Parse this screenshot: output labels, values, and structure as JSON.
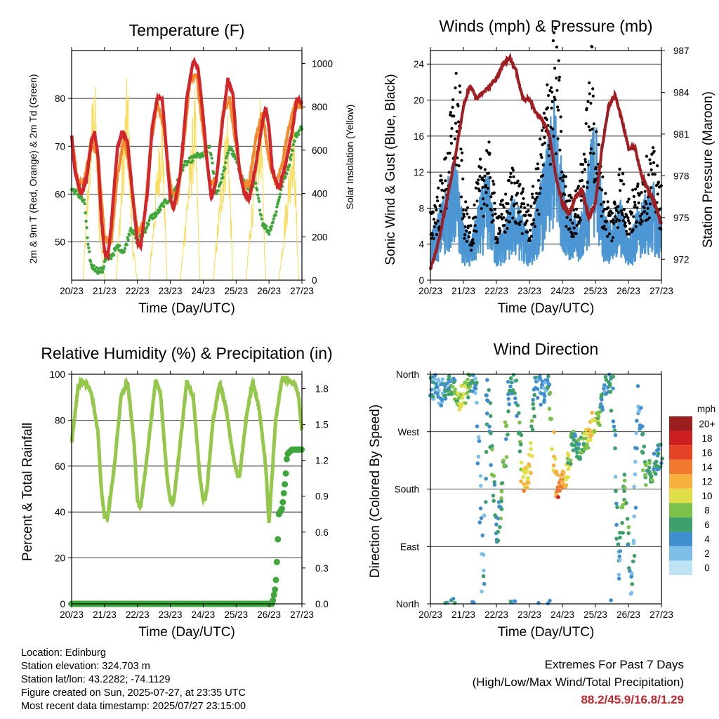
{
  "x_ticks": [
    "20/23",
    "21/23",
    "22/23",
    "23/23",
    "24/23",
    "25/23",
    "26/23",
    "27/23"
  ],
  "x_axis_title": "Time (Day/UTC)",
  "panels": {
    "temperature": {
      "title": "Temperature (F)",
      "left_axis_label": "2m & 9m T (Red, Orange) & 2m Td (Green)",
      "right_axis_label": "Solar Insolation (Yellow)",
      "left_ticks": [
        50,
        60,
        70,
        80
      ],
      "right_ticks": [
        0,
        200,
        400,
        600,
        800,
        1000
      ]
    },
    "winds": {
      "title": "Winds (mph) & Pressure (mb)",
      "left_axis_label": "Sonic Wind & Gust (Blue, Black)",
      "right_axis_label": "Station Pressure (Maroon)",
      "left_ticks": [
        0,
        4,
        8,
        12,
        16,
        20,
        24
      ],
      "right_ticks": [
        972,
        975,
        978,
        981,
        984,
        987
      ]
    },
    "humidity": {
      "title": "Relative Humidity (%) & Precipitation (in)",
      "left_axis_label": "Percent & Total Rainfall",
      "left_ticks": [
        0,
        20,
        40,
        60,
        80,
        100
      ],
      "right_ticks": [
        "0.0",
        "0.3",
        "0.6",
        "0.9",
        "1.2",
        "1.5",
        "1.8"
      ]
    },
    "direction": {
      "title": "Wind Direction",
      "left_axis_label": "Direction (Colored By Speed)",
      "dir_ticks": [
        "North",
        "East",
        "South",
        "West",
        "North"
      ],
      "colorbar_title": "mph",
      "colorbar_labels": [
        "0",
        "2",
        "4",
        "6",
        "8",
        "10",
        "12",
        "14",
        "16",
        "18",
        "20+"
      ],
      "colorbar_colors": [
        "#bde3f5",
        "#7fbfe7",
        "#3f8fcf",
        "#3da06a",
        "#7cc14a",
        "#e0df4a",
        "#f7b13f",
        "#f17a2f",
        "#e44326",
        "#cc1f1f",
        "#9b1d1d"
      ]
    }
  },
  "info": {
    "location": "Location: Edinburg",
    "elevation": "Station elevation: 324.703 m",
    "latlon": "Station lat/lon: 43.2282; -74.1129",
    "created": "Figure created on Sun, 2025-07-27, at 23:35 UTC",
    "recent": "Most recent data timestamp: 2025/07/27 23:15:00"
  },
  "extremes": {
    "title": "Extremes For Past 7 Days",
    "subtitle": "(High/Low/Max Wind/Total Precipitation)",
    "values": "88.2/45.9/16.8/1.29"
  },
  "chart_data": [
    {
      "type": "line",
      "title": "Temperature (F)",
      "xlabel": "Time (Day/UTC)",
      "ylabel": "2m & 9m T (Red, Orange) & 2m Td (Green)",
      "y2label": "Solar Insolation (Yellow)",
      "ylim": [
        42,
        90
      ],
      "y2lim": [
        0,
        1060
      ],
      "x_days": [
        0,
        7
      ],
      "series": [
        {
          "name": "2m T",
          "color": "#d3262a",
          "x": [
            0,
            0.1,
            0.2,
            0.3,
            0.45,
            0.6,
            0.7,
            0.8,
            0.9,
            1.0,
            1.1,
            1.2,
            1.3,
            1.4,
            1.55,
            1.7,
            1.85,
            2.0,
            2.1,
            2.3,
            2.45,
            2.6,
            2.75,
            2.85,
            3.0,
            3.1,
            3.3,
            3.5,
            3.7,
            3.85,
            4.0,
            4.1,
            4.25,
            4.4,
            4.6,
            4.75,
            4.9,
            5.0,
            5.1,
            5.25,
            5.4,
            5.6,
            5.8,
            5.9,
            6.0,
            6.1,
            6.3,
            6.5,
            6.7,
            6.85,
            7.0
          ],
          "y": [
            72,
            65,
            62,
            60,
            63,
            71,
            73,
            68,
            55,
            48,
            47,
            53,
            62,
            70,
            73,
            71,
            60,
            50,
            49,
            60,
            74,
            80,
            80,
            72,
            59,
            57,
            64,
            80,
            88,
            86,
            76,
            68,
            59,
            63,
            76,
            84,
            81,
            72,
            65,
            60,
            59,
            66,
            75,
            78,
            74,
            65,
            61,
            66,
            73,
            80,
            79
          ]
        },
        {
          "name": "9m T",
          "color": "#f28b2c",
          "x": [
            0,
            0.2,
            0.4,
            0.6,
            0.8,
            1.0,
            1.2,
            1.4,
            1.6,
            1.8,
            2.0,
            2.2,
            2.4,
            2.6,
            2.8,
            3.0,
            3.2,
            3.4,
            3.6,
            3.8,
            4.0,
            4.2,
            4.4,
            4.6,
            4.8,
            5.0,
            5.2,
            5.4,
            5.6,
            5.8,
            6.0,
            6.2,
            6.4,
            6.6,
            6.8,
            7.0
          ],
          "y": [
            72,
            62,
            63,
            71,
            68,
            51,
            50,
            64,
            72,
            63,
            52,
            54,
            70,
            79,
            74,
            62,
            58,
            70,
            84,
            85,
            73,
            62,
            63,
            77,
            80,
            70,
            62,
            62,
            72,
            77,
            67,
            62,
            66,
            74,
            79,
            78
          ]
        },
        {
          "name": "2m Td",
          "color": "#3ea63a",
          "x": [
            0,
            0.2,
            0.4,
            0.5,
            0.6,
            0.8,
            0.95,
            1.0,
            1.2,
            1.4,
            1.6,
            1.8,
            2.0,
            2.2,
            2.4,
            2.6,
            2.8,
            3.0,
            3.2,
            3.4,
            3.6,
            3.8,
            4.0,
            4.2,
            4.4,
            4.6,
            4.8,
            5.0,
            5.2,
            5.4,
            5.6,
            5.8,
            6.0,
            6.2,
            6.4,
            6.6,
            6.8,
            7.0
          ],
          "y": [
            61,
            60,
            58,
            49,
            45,
            44,
            44,
            46,
            47,
            49,
            48,
            53,
            50,
            52,
            55,
            56,
            58,
            59,
            62,
            66,
            67,
            68,
            68,
            70,
            60,
            64,
            70,
            67,
            63,
            61,
            62,
            54,
            52,
            56,
            62,
            66,
            72,
            74
          ]
        },
        {
          "name": "Solar Insolation",
          "axis": "y2",
          "color": "#f8dc5a",
          "x": [
            0,
            0.35,
            0.55,
            0.7,
            0.85,
            1.0,
            1.35,
            1.55,
            1.7,
            1.85,
            2.0,
            2.35,
            2.6,
            2.75,
            2.9,
            3.3,
            3.6,
            3.75,
            3.9,
            4.3,
            4.55,
            4.75,
            4.9,
            5.3,
            5.55,
            5.75,
            5.9,
            6.3,
            6.55,
            6.75,
            6.9,
            7.0
          ],
          "y": [
            0,
            0,
            700,
            1000,
            300,
            0,
            0,
            600,
            1020,
            200,
            0,
            0,
            550,
            860,
            0,
            0,
            600,
            900,
            0,
            0,
            500,
            850,
            0,
            0,
            550,
            870,
            0,
            0,
            450,
            800,
            0,
            0
          ]
        }
      ]
    },
    {
      "type": "line",
      "title": "Winds (mph) & Pressure (mb)",
      "xlabel": "Time (Day/UTC)",
      "ylabel": "Sonic Wind & Gust (Blue, Black)",
      "y2label": "Station Pressure (Maroon)",
      "ylim": [
        0,
        25.5
      ],
      "y2lim": [
        970.5,
        987
      ],
      "x_days": [
        0,
        7
      ],
      "series": [
        {
          "name": "Sonic Wind",
          "color": "#4b96d3",
          "x": [
            0,
            0.25,
            0.5,
            0.75,
            1.0,
            1.25,
            1.5,
            1.75,
            2.0,
            2.25,
            2.5,
            2.75,
            3.0,
            3.25,
            3.5,
            3.75,
            4.0,
            4.25,
            4.5,
            4.75,
            5.0,
            5.25,
            5.5,
            5.75,
            6.0,
            6.25,
            6.5,
            6.75,
            7.0
          ],
          "y": [
            3,
            5,
            7,
            9,
            4,
            3,
            6,
            8,
            3,
            4,
            6,
            5,
            3,
            6,
            9,
            13,
            8,
            5,
            4,
            8,
            12,
            5,
            4,
            6,
            3,
            5,
            6,
            7,
            4
          ]
        },
        {
          "name": "Gust",
          "color": "#000000",
          "x": [
            0,
            0.25,
            0.5,
            0.75,
            0.9,
            1.0,
            1.25,
            1.5,
            1.75,
            2.0,
            2.25,
            2.5,
            2.75,
            3.0,
            3.25,
            3.5,
            3.75,
            3.9,
            4.0,
            4.25,
            4.5,
            4.75,
            4.9,
            5.0,
            5.25,
            5.5,
            5.75,
            6.0,
            6.25,
            6.5,
            6.75,
            7.0
          ],
          "y": [
            6,
            8,
            11,
            18,
            16,
            7,
            5,
            10,
            12,
            6,
            7,
            10,
            8,
            6,
            10,
            16,
            22,
            18,
            10,
            7,
            8,
            15,
            20,
            14,
            8,
            6,
            10,
            7,
            8,
            10,
            11,
            8
          ]
        },
        {
          "name": "Station Pressure",
          "axis": "y2",
          "color": "#a01e22",
          "x": [
            0,
            0.2,
            0.4,
            0.6,
            0.8,
            1.0,
            1.2,
            1.4,
            1.6,
            1.8,
            2.0,
            2.2,
            2.4,
            2.6,
            2.8,
            3.0,
            3.2,
            3.4,
            3.6,
            3.8,
            4.0,
            4.2,
            4.4,
            4.6,
            4.8,
            5.0,
            5.2,
            5.4,
            5.6,
            5.8,
            6.0,
            6.2,
            6.4,
            6.6,
            6.8,
            7.0
          ],
          "y": [
            971.3,
            972.8,
            975,
            977.5,
            980,
            983,
            984.5,
            983.5,
            984,
            984.5,
            985,
            986,
            986.5,
            985.5,
            983.5,
            983.5,
            982.5,
            982,
            981,
            978,
            976,
            975.2,
            976.5,
            977,
            975,
            976,
            980,
            983,
            983.8,
            982,
            980,
            980,
            978,
            977,
            976,
            974.5
          ]
        }
      ]
    },
    {
      "type": "line",
      "title": "Relative Humidity (%) & Precipitation (in)",
      "xlabel": "Time (Day/UTC)",
      "ylabel": "Percent & Total Rainfall",
      "ylim": [
        0,
        100
      ],
      "y2lim": [
        0,
        1.92
      ],
      "x_days": [
        0,
        7
      ],
      "series": [
        {
          "name": "Relative Humidity",
          "color": "#94c74a",
          "x": [
            0,
            0.2,
            0.4,
            0.6,
            0.8,
            0.9,
            1.0,
            1.1,
            1.3,
            1.5,
            1.7,
            1.9,
            2.0,
            2.1,
            2.3,
            2.55,
            2.7,
            2.9,
            3.0,
            3.1,
            3.3,
            3.5,
            3.7,
            3.9,
            4.0,
            4.1,
            4.3,
            4.5,
            4.7,
            4.9,
            5.0,
            5.1,
            5.3,
            5.5,
            5.7,
            5.9,
            6.0,
            6.2,
            6.4,
            6.5,
            6.6,
            6.8,
            6.9,
            7.0
          ],
          "y": [
            70,
            95,
            97,
            92,
            75,
            50,
            38,
            38,
            60,
            90,
            97,
            70,
            45,
            42,
            65,
            97,
            92,
            55,
            45,
            44,
            70,
            97,
            90,
            55,
            45,
            48,
            80,
            96,
            85,
            65,
            58,
            55,
            80,
            97,
            85,
            60,
            35,
            80,
            98,
            98,
            97,
            96,
            90,
            75
          ]
        },
        {
          "name": "Total Precipitation",
          "axis": "y2",
          "color": "#3ea63a",
          "x": [
            0,
            6.0,
            6.1,
            6.2,
            6.25,
            6.3,
            6.4,
            6.5,
            6.55,
            6.7,
            7.0
          ],
          "y": [
            0,
            0,
            0,
            0.15,
            0.4,
            0.75,
            0.8,
            1.05,
            1.25,
            1.29,
            1.29
          ]
        }
      ]
    },
    {
      "type": "scatter",
      "title": "Wind Direction",
      "xlabel": "Time (Day/UTC)",
      "ylabel": "Direction (Colored By Speed)",
      "ylim": [
        0,
        360
      ],
      "x_days": [
        0,
        7
      ],
      "series": [
        {
          "name": "Wind Direction",
          "x": [
            0.1,
            0.3,
            0.5,
            0.7,
            0.9,
            1.1,
            1.4,
            1.6,
            1.7,
            1.9,
            2.0,
            2.2,
            2.4,
            2.6,
            2.8,
            3.0,
            3.2,
            3.4,
            3.6,
            3.8,
            3.9,
            4.1,
            4.3,
            4.5,
            4.7,
            4.9,
            5.1,
            5.3,
            5.5,
            5.7,
            5.9,
            6.1,
            6.3,
            6.5,
            6.7,
            6.9
          ],
          "y": [
            340,
            330,
            345,
            350,
            320,
            340,
            345,
            10,
            355,
            200,
            100,
            190,
            350,
            345,
            190,
            200,
            345,
            330,
            350,
            190,
            180,
            200,
            260,
            240,
            250,
            280,
            300,
            340,
            350,
            50,
            200,
            10,
            330,
            200,
            210,
            230
          ],
          "speed": [
            4,
            3,
            5,
            6,
            9,
            8,
            4,
            3,
            4,
            6,
            4,
            7,
            5,
            4,
            11,
            12,
            4,
            3,
            5,
            13,
            16,
            10,
            6,
            5,
            9,
            12,
            8,
            4,
            5,
            4,
            8,
            4,
            3,
            7,
            6,
            5
          ]
        }
      ]
    }
  ]
}
